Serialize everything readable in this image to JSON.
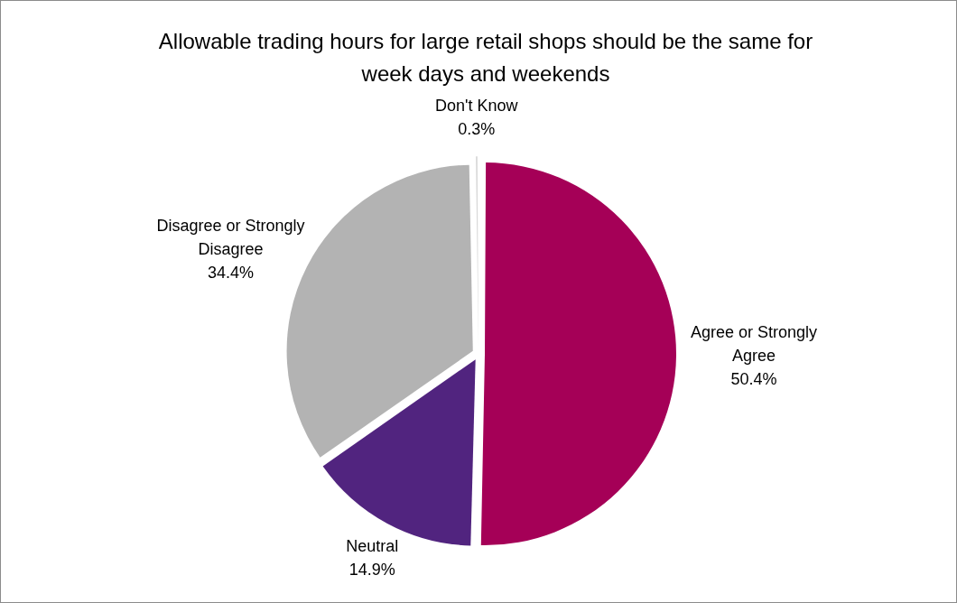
{
  "chart_data": {
    "type": "pie",
    "title": "Allowable trading hours for large retail shops should be the same for week days and weekends",
    "categories": [
      "Agree or Strongly Agree",
      "Neutral",
      "Disagree or Strongly Disagree",
      "Don't Know"
    ],
    "values": [
      50.4,
      14.9,
      34.4,
      0.3
    ],
    "colors": [
      "#a50057",
      "#51247f",
      "#b3b3b3",
      "#d9d9d9"
    ],
    "value_labels": [
      "50.4%",
      "14.9%",
      "34.4%",
      "0.3%"
    ],
    "legend": false
  }
}
